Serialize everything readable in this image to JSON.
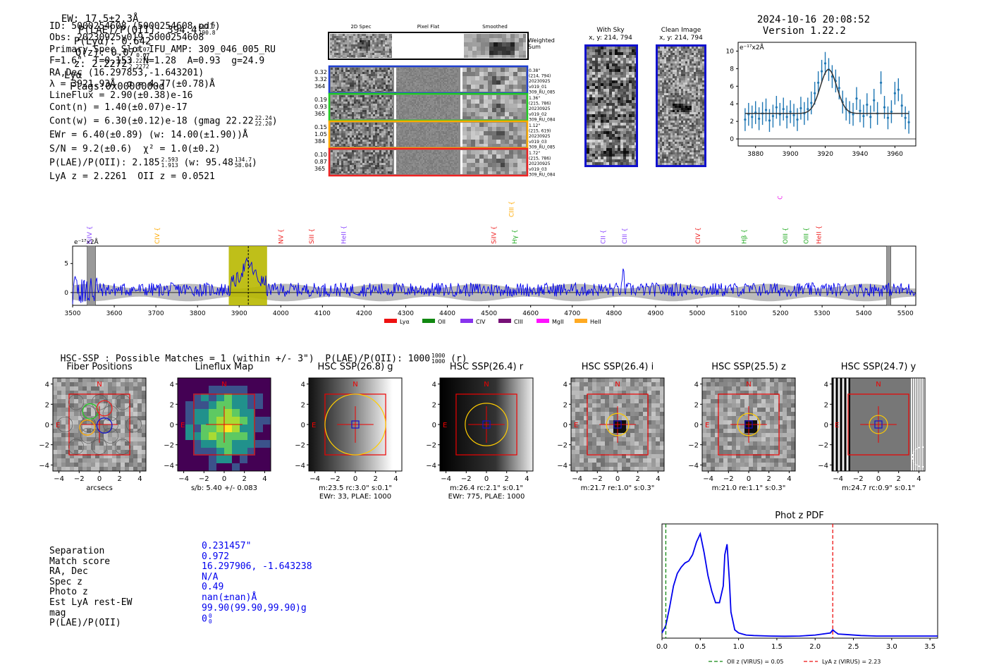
{
  "header": {
    "ew": "EW: 17.5±2.3Å",
    "plae_label": "P(LAE)/P(OII): 394.4",
    "plae_hi": "617.7",
    "plae_lo": "190.8",
    "plya": "P(Lyα): 0.642",
    "qz_label": "Q(z): 0.07",
    "qz_hi": "0.07",
    "qz_lo": "0.07",
    "z_label": "z: 2.2272",
    "z_hi": "2.2272",
    "z_lo": "2.2272",
    "z_tail": "Lyα",
    "flags": "Flags:0x0000000d",
    "timestamp": "2024-10-16 20:08:52",
    "version": "Version 1.22.2"
  },
  "info": {
    "lines": [
      "ID: 5000254608 (5000254608.pdf)",
      "Obs: 20230925v019_5000254608",
      "Primary Spec_Slot_IFU_AMP: 309_046_005_RU",
      "F=1.6\"  T=0.153  N=1.28  A=0.93  g=24.9",
      "RA,Dec (16.297853,-1.643201)",
      "λ = 3921.93Å  σ = 4.77(±0.78)Å",
      "LineFlux = 2.90(±0.38)e-16",
      "Cont(n) = 1.40(±0.07)e-17"
    ],
    "contw": "Cont(w) = 6.30(±0.12)e-18 (gmag 22.22",
    "contw_hi": "22.24",
    "contw_lo": "22.20",
    "contw_tail": ")",
    "ewr": "EWr = 6.40(±0.89) (w: 14.00(±1.90))Å",
    "sn": "S/N = 9.2(±0.6)  χ² = 1.0(±0.2)",
    "plae": "P(LAE)/P(OII): 2.185",
    "plae_hi": "2.593",
    "plae_lo": "1.913",
    "plae_mid": "(w: 95.48",
    "plae_w_hi": "134.7",
    "plae_w_lo": "58.04",
    "plae_tail": ")",
    "z_line": "LyA z = 2.2261  OII z = 0.0521"
  },
  "cutouts": {
    "col_2d": "2D Spec",
    "col_flat": "Pixel Flat",
    "col_smooth": "Smoothed",
    "weighted": "Weighted Sum",
    "rows": [
      {
        "left": [
          "0.32",
          "3.32",
          "364"
        ],
        "right": [
          "0.38\"",
          "(214, 794)",
          "20230925",
          "v019_01",
          "309_RU_085"
        ],
        "color": "#1f3fd0"
      },
      {
        "left": [
          "0.19",
          "0.93",
          "365"
        ],
        "right": [
          "1.36\"",
          "(215, 786)",
          "20230925",
          "v019_02",
          "309_RU_084"
        ],
        "color": "#22cc22"
      },
      {
        "left": [
          "0.15",
          "1.05",
          "384"
        ],
        "right": [
          "1.12\"",
          "(215, 619)",
          "20230925",
          "v019_03",
          "309_RU_085"
        ],
        "color": "#ffaa00"
      },
      {
        "left": [
          "0.10",
          "0.87",
          "365"
        ],
        "right": [
          "1.72\"",
          "(215, 786)",
          "20230925",
          "v019_03",
          "309_RU_084"
        ],
        "color": "#ee2222"
      }
    ],
    "with_sky": "With Sky",
    "with_sky_xy": "x, y: 214, 794",
    "clean": "Clean Image",
    "clean_xy": "x, y: 214, 794"
  },
  "zoom_chart": {
    "type": "line",
    "unit": "e⁻¹⁷x2Å",
    "xlim": [
      3870,
      3972
    ],
    "ylim": [
      -0.8,
      11
    ],
    "xticks": [
      3880,
      3900,
      3920,
      3940,
      3960
    ],
    "yticks": [
      0,
      2,
      4,
      6,
      8,
      10
    ],
    "points_x": [
      3874,
      3876,
      3878,
      3880,
      3882,
      3884,
      3886,
      3888,
      3890,
      3892,
      3894,
      3896,
      3898,
      3900,
      3902,
      3904,
      3906,
      3908,
      3910,
      3912,
      3914,
      3916,
      3918,
      3920,
      3922,
      3924,
      3926,
      3928,
      3930,
      3932,
      3934,
      3936,
      3938,
      3940,
      3942,
      3944,
      3946,
      3948,
      3950,
      3952,
      3954,
      3956,
      3958,
      3960,
      3962,
      3964,
      3966,
      3968
    ],
    "points_y": [
      2.2,
      2.8,
      2.5,
      3.0,
      2.3,
      2.9,
      3.3,
      2.1,
      2.6,
      3.6,
      2.8,
      3.4,
      2.5,
      3.1,
      2.7,
      2.2,
      3.5,
      2.9,
      3.4,
      4.1,
      5.2,
      6.4,
      7.7,
      8.6,
      7.9,
      7.1,
      6.6,
      5.8,
      4.2,
      3.4,
      3.0,
      2.8,
      4.6,
      3.2,
      2.6,
      3.9,
      2.5,
      4.4,
      2.9,
      6.4,
      3.6,
      2.4,
      3.1,
      5.2,
      5.6,
      3.8,
      2.4,
      1.9
    ],
    "err": 1.3,
    "fit_amp": 5.0,
    "fit_center": 3921.9,
    "fit_sigma": 4.77,
    "fit_cont": 2.9
  },
  "full_chart": {
    "type": "line",
    "unit": "e⁻¹⁷x2Å",
    "xlim": [
      3500,
      5525
    ],
    "ylim": [
      -2.2,
      8
    ],
    "xticks": [
      3500,
      3600,
      3700,
      3800,
      3900,
      4000,
      4100,
      4200,
      4300,
      4400,
      4500,
      4600,
      4700,
      4800,
      4900,
      5000,
      5100,
      5200,
      5300,
      5400,
      5500
    ],
    "yticks": [
      0,
      5
    ],
    "highlight": [
      3875,
      3967
    ],
    "line_center": 3921.9,
    "gray_bands": [
      [
        3535,
        3555
      ],
      [
        5455,
        5465
      ]
    ],
    "spectral_lines": [
      {
        "name": "SiIV",
        "x": 3541,
        "color": "#8844ff",
        "row": 0
      },
      {
        "name": "CIV",
        "x": 3703,
        "color": "#ffaa00",
        "row": 0
      },
      {
        "name": "NV",
        "x": 4000,
        "color": "#ee2222",
        "row": 0
      },
      {
        "name": "SiII",
        "x": 4074,
        "color": "#ee2222",
        "row": 0
      },
      {
        "name": "HeII",
        "x": 4151,
        "color": "#8844ff",
        "row": 0
      },
      {
        "name": "SiIV",
        "x": 4512,
        "color": "#ee2222",
        "row": 0
      },
      {
        "name": "CIII",
        "x": 4554,
        "color": "#ffaa00",
        "row": 1
      },
      {
        "name": "Hγ",
        "x": 4562,
        "color": "#22aa22",
        "row": 0
      },
      {
        "name": "CII",
        "x": 4774,
        "color": "#8844ff",
        "row": 0
      },
      {
        "name": "CIII",
        "x": 4826,
        "color": "#8844ff",
        "row": 0
      },
      {
        "name": "CIV",
        "x": 5002,
        "color": "#ee2222",
        "row": 0
      },
      {
        "name": "Hβ",
        "x": 5113,
        "color": "#22aa22",
        "row": 0
      },
      {
        "name": "OII",
        "x": 5199,
        "color": "#ee22ee",
        "row": 2
      },
      {
        "name": "OIII",
        "x": 5212,
        "color": "#22aa22",
        "row": 0
      },
      {
        "name": "OIII",
        "x": 5262,
        "color": "#22aa22",
        "row": 0
      },
      {
        "name": "HeII",
        "x": 5292,
        "color": "#ee2222",
        "row": 0
      }
    ],
    "legend": [
      {
        "label": "Lyα",
        "color": "#ee1111"
      },
      {
        "label": "OII",
        "color": "#118811"
      },
      {
        "label": "CIV",
        "color": "#8833ee"
      },
      {
        "label": "CIII",
        "color": "#771177"
      },
      {
        "label": "MgII",
        "color": "#ff11ff"
      },
      {
        "label": "HeII",
        "color": "#ffaa22"
      }
    ]
  },
  "hsc": {
    "summary": "HSC-SSP : Possible Matches = 1 (within +/- 3\")  P(LAE)/P(OII): 1000",
    "summary_hi": "1000",
    "summary_lo": "1000",
    "summary_tail": "(r)",
    "panels": [
      {
        "title": "Fiber Positions",
        "cap1": "arcsecs",
        "cap2": ""
      },
      {
        "title": "Lineflux Map",
        "cap1": "s/b: 5.40 +/- 0.083",
        "cap2": ""
      },
      {
        "title": "HSC SSP(26.8) g",
        "cap1": "m:23.5 rc:3.0\"  s:0.1\"",
        "cap2": "EWr: 33, PLAE: 1000"
      },
      {
        "title": "HSC SSP(26.4) r",
        "cap1": "m:26.4 rc:2.1\"  s:0.1\"",
        "cap2": "EWr: 775, PLAE: 1000"
      },
      {
        "title": "HSC SSP(26.4) i",
        "cap1": "m:21.7  re:1.0\"  s:0.3\"",
        "cap2": ""
      },
      {
        "title": "HSC SSP(25.5) z",
        "cap1": "m:21.0  re:1.1\"  s:0.3\"",
        "cap2": ""
      },
      {
        "title": "HSC SSP(24.7) y",
        "cap1": "m:24.7 rc:0.9\"  s:0.1\"",
        "cap2": ""
      }
    ],
    "ticks": [
      "−4",
      "−2",
      "0",
      "2",
      "4"
    ],
    "n_label": "N",
    "e_label": "E"
  },
  "candidate": {
    "keys": [
      "Separation",
      "Match score",
      "RA, Dec",
      "Spec z",
      "Photo z",
      "Est LyA rest-EW",
      "mag",
      "P(LAE)/P(OII)"
    ],
    "values": [
      "0.231457\"",
      "0.972",
      "16.297906, -1.643238",
      "N/A",
      "0.49",
      "nan(±nan)Å",
      "99.90(99.90,99.90)g",
      "0"
    ],
    "plae_hi": "0",
    "plae_lo": "0"
  },
  "photz": {
    "type": "line",
    "title": "Phot z PDF",
    "xlim": [
      0,
      3.6
    ],
    "xticks": [
      0.0,
      0.5,
      1.0,
      1.5,
      2.0,
      2.5,
      3.0,
      3.5
    ],
    "oii_z": 0.05,
    "lya_z": 2.23,
    "legend_oii": "OII z (VIRUS) = 0.05",
    "legend_lya": "LyA z (VIRUS) = 2.23",
    "x": [
      0.0,
      0.05,
      0.1,
      0.15,
      0.2,
      0.25,
      0.3,
      0.35,
      0.4,
      0.45,
      0.5,
      0.55,
      0.6,
      0.65,
      0.7,
      0.75,
      0.8,
      0.82,
      0.85,
      0.88,
      0.9,
      0.95,
      1.0,
      1.05,
      1.1,
      1.2,
      1.4,
      1.6,
      1.8,
      2.0,
      2.1,
      2.2,
      2.23,
      2.26,
      2.3,
      2.4,
      2.6,
      2.8,
      3.0,
      3.3,
      3.6
    ],
    "y": [
      0.05,
      0.12,
      0.3,
      0.5,
      0.62,
      0.68,
      0.72,
      0.74,
      0.8,
      0.92,
      1.0,
      0.82,
      0.6,
      0.45,
      0.34,
      0.34,
      0.5,
      0.8,
      0.9,
      0.55,
      0.25,
      0.08,
      0.05,
      0.04,
      0.03,
      0.025,
      0.02,
      0.018,
      0.02,
      0.03,
      0.04,
      0.05,
      0.08,
      0.06,
      0.04,
      0.035,
      0.025,
      0.02,
      0.02,
      0.02,
      0.02
    ]
  }
}
